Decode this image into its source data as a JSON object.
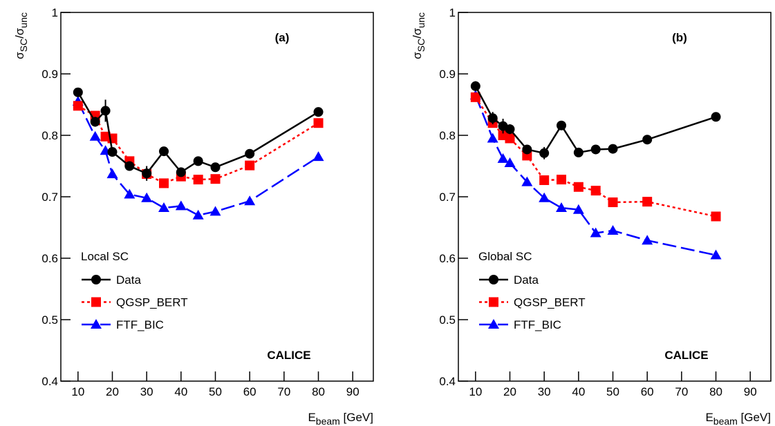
{
  "chart_data": [
    {
      "type": "line",
      "panel_label": "(a)",
      "legend_title": "Local SC",
      "watermark": "CALICE",
      "y_label": [
        "σ",
        "SC",
        "/σ",
        "unc"
      ],
      "x_label": [
        "E",
        "beam",
        " [GeV]"
      ],
      "xlim": [
        5,
        96
      ],
      "ylim": [
        0.4,
        1
      ],
      "xticks": [
        10,
        20,
        30,
        40,
        50,
        60,
        70,
        80,
        90
      ],
      "yticks": [
        0.4,
        0.5,
        0.6,
        0.7,
        0.8,
        0.9,
        1
      ],
      "x": [
        10,
        15,
        18,
        20,
        25,
        30,
        35,
        40,
        45,
        50,
        60,
        80
      ],
      "series": [
        {
          "name": "Data",
          "color": "#000000",
          "marker": "circle",
          "dash": "solid",
          "values": [
            0.87,
            0.822,
            0.84,
            0.773,
            0.75,
            0.738,
            0.774,
            0.74,
            0.758,
            0.748,
            0.77,
            0.838
          ],
          "errors": [
            0.007,
            0.008,
            0.018,
            0.006,
            0.006,
            0.012,
            0.004,
            0.006,
            0.004,
            0.004,
            0.004,
            0.004
          ]
        },
        {
          "name": "QGSP_BERT",
          "color": "#ff0000",
          "marker": "square",
          "dash": "dotted",
          "values": [
            0.848,
            0.832,
            0.798,
            0.795,
            0.758,
            0.737,
            0.722,
            0.733,
            0.728,
            0.729,
            0.751,
            0.82
          ]
        },
        {
          "name": "FTF_BIC",
          "color": "#0000ff",
          "marker": "triangle",
          "dash": "long-dash",
          "values": [
            0.855,
            0.798,
            0.775,
            0.737,
            0.704,
            0.698,
            0.682,
            0.685,
            0.67,
            0.676,
            0.693,
            0.765
          ]
        }
      ]
    },
    {
      "type": "line",
      "panel_label": "(b)",
      "legend_title": "Global SC",
      "watermark": "CALICE",
      "y_label": [
        "σ",
        "SC",
        "/σ",
        "unc"
      ],
      "x_label": [
        "E",
        "beam",
        " [GeV]"
      ],
      "xlim": [
        5,
        96
      ],
      "ylim": [
        0.4,
        1
      ],
      "xticks": [
        10,
        20,
        30,
        40,
        50,
        60,
        70,
        80,
        90
      ],
      "yticks": [
        0.4,
        0.5,
        0.6,
        0.7,
        0.8,
        0.9,
        1
      ],
      "x": [
        10,
        15,
        18,
        20,
        25,
        30,
        35,
        40,
        45,
        50,
        60,
        80
      ],
      "series": [
        {
          "name": "Data",
          "color": "#000000",
          "marker": "circle",
          "dash": "solid",
          "values": [
            0.88,
            0.828,
            0.815,
            0.81,
            0.777,
            0.771,
            0.816,
            0.772,
            0.777,
            0.778,
            0.793,
            0.83
          ],
          "errors": [
            0.008,
            0.01,
            0.012,
            0.008,
            0.006,
            0.01,
            0.004,
            0.004,
            0.004,
            0.004,
            0.004,
            0.004
          ]
        },
        {
          "name": "QGSP_BERT",
          "color": "#ff0000",
          "marker": "square",
          "dash": "dotted",
          "values": [
            0.862,
            0.82,
            0.8,
            0.795,
            0.767,
            0.727,
            0.728,
            0.716,
            0.71,
            0.691,
            0.692,
            0.668
          ]
        },
        {
          "name": "FTF_BIC",
          "color": "#0000ff",
          "marker": "triangle",
          "dash": "long-dash",
          "values": [
            0.865,
            0.795,
            0.762,
            0.755,
            0.724,
            0.698,
            0.682,
            0.679,
            0.641,
            0.645,
            0.629,
            0.605
          ]
        }
      ]
    }
  ]
}
